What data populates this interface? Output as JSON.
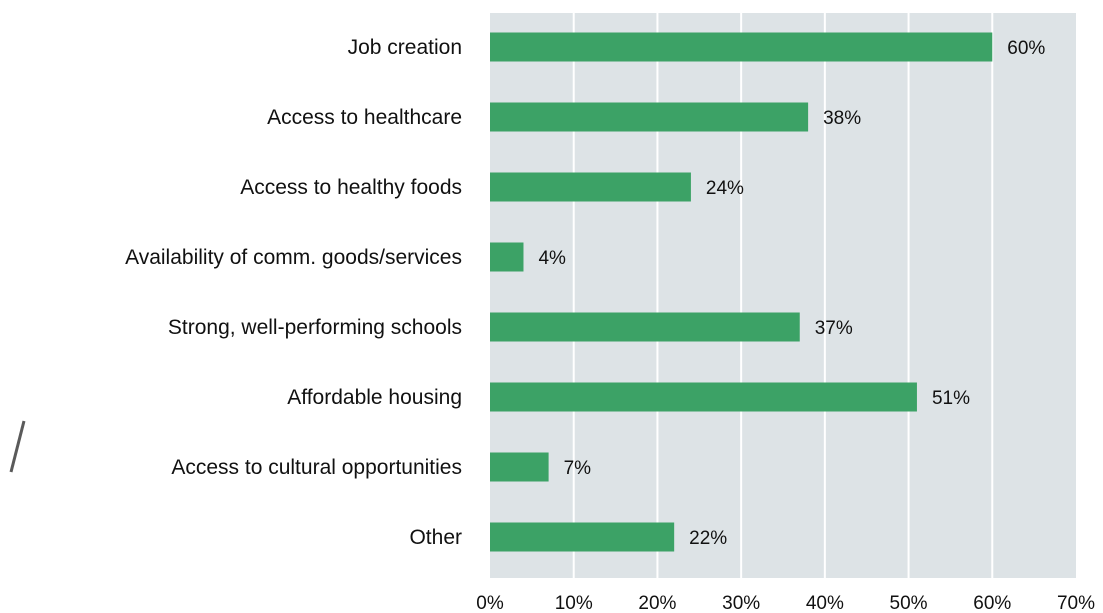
{
  "chart_data": {
    "type": "bar",
    "orientation": "horizontal",
    "categories": [
      "Job creation",
      "Access to healthcare",
      "Access to healthy foods",
      "Availability of comm. goods/services",
      "Strong, well-performing schools",
      "Affordable housing",
      "Access to cultural opportunities",
      "Other"
    ],
    "values": [
      60,
      38,
      24,
      4,
      37,
      51,
      7,
      22
    ],
    "value_labels": [
      "60%",
      "38%",
      "24%",
      "4%",
      "37%",
      "51%",
      "7%",
      "22%"
    ],
    "x_ticks": [
      0,
      10,
      20,
      30,
      40,
      50,
      60,
      70
    ],
    "x_tick_labels": [
      "0%",
      "10%",
      "20%",
      "30%",
      "40%",
      "50%",
      "60%",
      "70%"
    ],
    "xlim": [
      0,
      70
    ],
    "grid": true,
    "colors": {
      "bar": "#3ca266",
      "plot_background": "#dde3e6",
      "grid": "#ffffff",
      "text": "#111111"
    }
  }
}
